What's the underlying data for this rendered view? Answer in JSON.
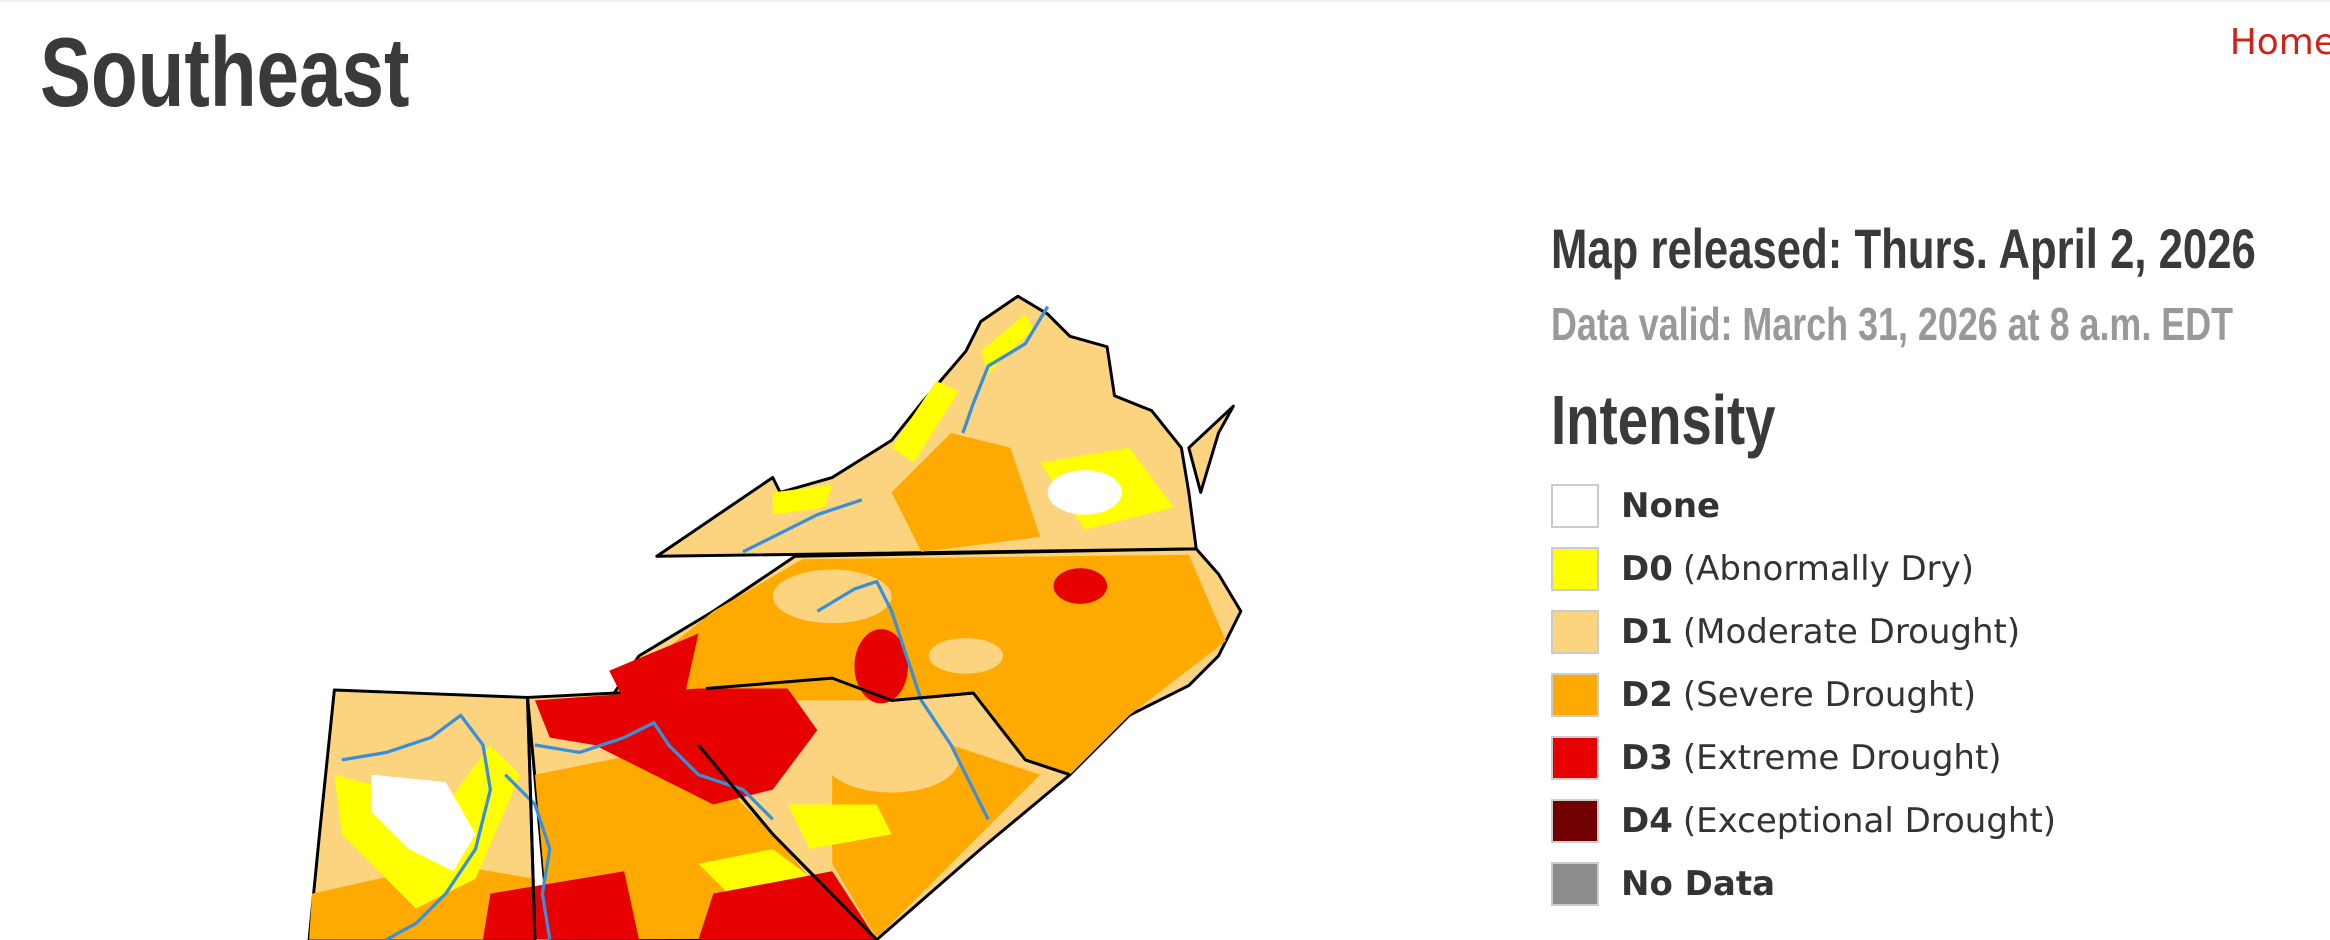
{
  "header": {
    "title": "Southeast",
    "home": "Home"
  },
  "info": {
    "released": "Map released: Thurs. April 2, 2026",
    "valid": "Data valid: March 31, 2026 at 8 a.m. EDT"
  },
  "legend": {
    "title": "Intensity",
    "items": [
      {
        "code": "None",
        "color": "#ffffff"
      },
      {
        "code": "D0",
        "label": "(Abnormally Dry)",
        "color": "#ffff00"
      },
      {
        "code": "D1",
        "label": "(Moderate Drought)",
        "color": "#fcd37f"
      },
      {
        "code": "D2",
        "label": "(Severe Drought)",
        "color": "#ffaa00"
      },
      {
        "code": "D3",
        "label": "(Extreme Drought)",
        "color": "#e60000"
      },
      {
        "code": "D4",
        "label": "(Exceptional Drought)",
        "color": "#730000"
      },
      {
        "code": "No Data",
        "color": "#8c8c8c"
      }
    ]
  }
}
